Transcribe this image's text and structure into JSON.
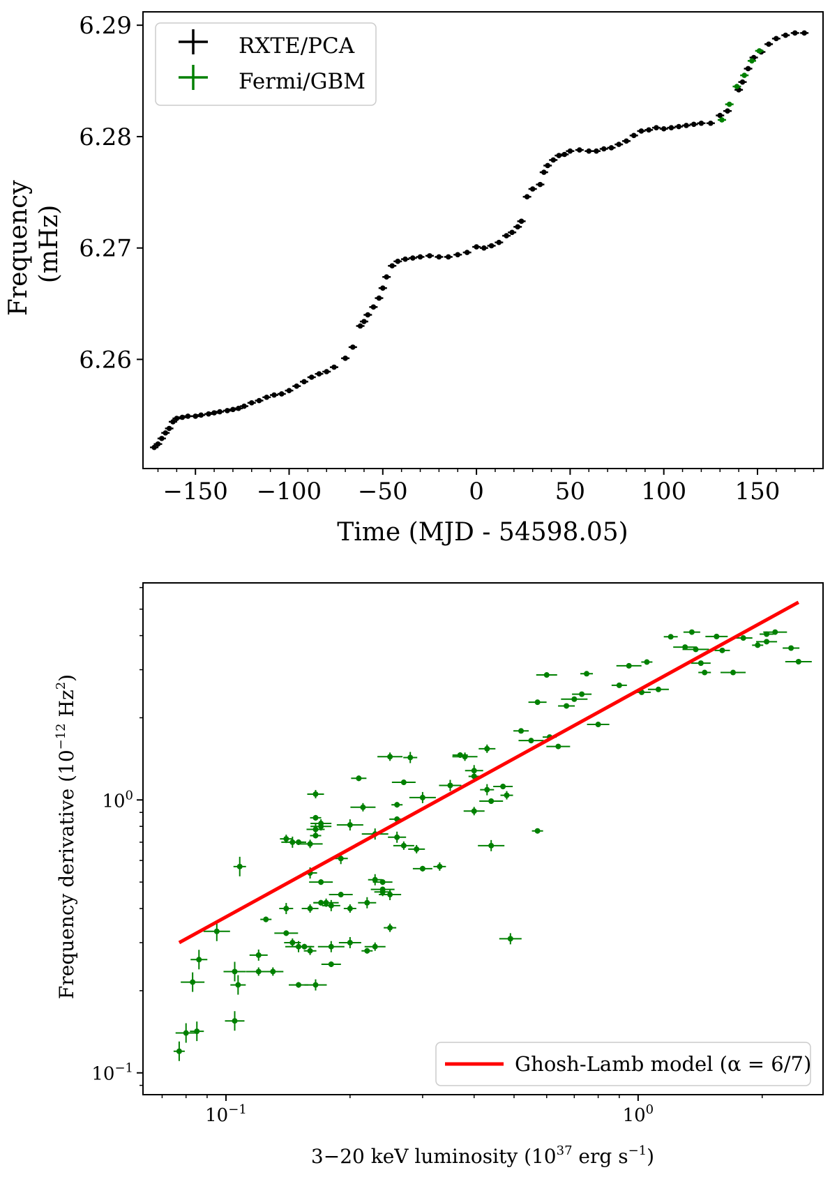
{
  "chart_data": [
    {
      "type": "scatter",
      "title": "",
      "xlabel": "Time (MJD - 54598.05)",
      "ylabel_lines": [
        "Frequency",
        "(mHz)"
      ],
      "xlim": [
        -178,
        185
      ],
      "ylim": [
        6.2502,
        6.2912
      ],
      "xticks": [
        -150,
        -100,
        -50,
        0,
        50,
        100,
        150
      ],
      "xtick_labels": [
        "−150",
        "−100",
        "−50",
        "0",
        "50",
        "100",
        "150"
      ],
      "yticks": [
        6.26,
        6.27,
        6.28,
        6.29
      ],
      "ytick_labels": [
        "6.26",
        "6.27",
        "6.28",
        "6.29"
      ],
      "legend": {
        "position": "upper-left",
        "entries": [
          {
            "label": "RXTE/PCA",
            "color": "#000000"
          },
          {
            "label": "Fermi/GBM",
            "color": "#008000"
          }
        ]
      },
      "series": [
        {
          "name": "RXTE/PCA",
          "color": "#000000",
          "points": [
            [
              -172,
              6.2521
            ],
            [
              -170,
              6.2524
            ],
            [
              -168,
              6.2529
            ],
            [
              -166,
              6.2534
            ],
            [
              -164,
              6.2538
            ],
            [
              -162,
              6.2544
            ],
            [
              -160,
              6.2547
            ],
            [
              -157,
              6.2548
            ],
            [
              -154,
              6.2549
            ],
            [
              -150,
              6.2549
            ],
            [
              -147,
              6.255
            ],
            [
              -143,
              6.2551
            ],
            [
              -140,
              6.2552
            ],
            [
              -137,
              6.2553
            ],
            [
              -133,
              6.2554
            ],
            [
              -130,
              6.2555
            ],
            [
              -127,
              6.2556
            ],
            [
              -124,
              6.2558
            ],
            [
              -120,
              6.2561
            ],
            [
              -116,
              6.2563
            ],
            [
              -112,
              6.2566
            ],
            [
              -108,
              6.2568
            ],
            [
              -104,
              6.2569
            ],
            [
              -100,
              6.2572
            ],
            [
              -96,
              6.2576
            ],
            [
              -92,
              6.258
            ],
            [
              -88,
              6.2584
            ],
            [
              -84,
              6.2587
            ],
            [
              -80,
              6.2589
            ],
            [
              -76,
              6.2593
            ],
            [
              -70,
              6.2601
            ],
            [
              -66,
              6.2611
            ],
            [
              -62,
              6.263
            ],
            [
              -60,
              6.2634
            ],
            [
              -58,
              6.264
            ],
            [
              -55,
              6.2647
            ],
            [
              -52,
              6.2655
            ],
            [
              -50,
              6.2664
            ],
            [
              -48,
              6.2674
            ],
            [
              -45,
              6.2684
            ],
            [
              -42,
              6.2688
            ],
            [
              -38,
              6.269
            ],
            [
              -34,
              6.2691
            ],
            [
              -30,
              6.2692
            ],
            [
              -25,
              6.2693
            ],
            [
              -20,
              6.2692
            ],
            [
              -15,
              6.2692
            ],
            [
              -10,
              6.2694
            ],
            [
              -5,
              6.2696
            ],
            [
              0,
              6.2701
            ],
            [
              4,
              6.27
            ],
            [
              8,
              6.2702
            ],
            [
              12,
              6.2705
            ],
            [
              16,
              6.2711
            ],
            [
              19,
              6.2714
            ],
            [
              22,
              6.2719
            ],
            [
              24,
              6.2724
            ],
            [
              27,
              6.2746
            ],
            [
              30,
              6.2753
            ],
            [
              34,
              6.2757
            ],
            [
              36,
              6.2768
            ],
            [
              38,
              6.2774
            ],
            [
              41,
              6.2779
            ],
            [
              44,
              6.2783
            ],
            [
              47,
              6.2784
            ],
            [
              50,
              6.2787
            ],
            [
              55,
              6.2788
            ],
            [
              60,
              6.2787
            ],
            [
              64,
              6.2787
            ],
            [
              68,
              6.2789
            ],
            [
              72,
              6.279
            ],
            [
              76,
              6.2793
            ],
            [
              80,
              6.2796
            ],
            [
              84,
              6.2801
            ],
            [
              88,
              6.2805
            ],
            [
              92,
              6.2806
            ],
            [
              96,
              6.2808
            ],
            [
              100,
              6.2807
            ],
            [
              104,
              6.2808
            ],
            [
              108,
              6.2809
            ],
            [
              112,
              6.281
            ],
            [
              116,
              6.2811
            ],
            [
              120,
              6.2812
            ],
            [
              125,
              6.2812
            ],
            [
              130,
              6.2819
            ],
            [
              134,
              6.2823
            ],
            [
              140,
              6.2842
            ],
            [
              142,
              6.2849
            ],
            [
              145,
              6.2861
            ],
            [
              148,
              6.2871
            ],
            [
              152,
              6.2876
            ],
            [
              156,
              6.2883
            ],
            [
              160,
              6.2888
            ],
            [
              165,
              6.2891
            ],
            [
              170,
              6.2893
            ],
            [
              175,
              6.2893
            ]
          ]
        },
        {
          "name": "Fermi/GBM",
          "color": "#008000",
          "points": [
            [
              131,
              6.2815
            ],
            [
              135,
              6.2829
            ],
            [
              139,
              6.2845
            ],
            [
              143,
              6.2855
            ],
            [
              147,
              6.2868
            ],
            [
              151,
              6.2877
            ]
          ]
        }
      ]
    },
    {
      "type": "scatter",
      "title": "",
      "xlabel": "3−20 keV luminosity (10^37 erg s^−1)",
      "xlabel_parts": {
        "pre": "3−20 keV luminosity (10",
        "exp": "37",
        "mid": " erg s",
        "exp2": "−1",
        "post": ")"
      },
      "ylabel": "Frequency derivative (10^−12 Hz^2)",
      "ylabel_parts": {
        "pre": "Frequency derivative (10",
        "exp": "−12",
        "mid": " Hz",
        "exp2": "2",
        "post": ")"
      },
      "x_scale": "log",
      "y_scale": "log",
      "xlim": [
        0.0629,
        2.81
      ],
      "ylim": [
        0.0832,
        6.24
      ],
      "xticks": [
        0.1,
        1.0
      ],
      "xtick_labels": [
        {
          "base": "10",
          "exp": "−1"
        },
        {
          "base": "10",
          "exp": "0"
        }
      ],
      "yticks": [
        0.1,
        1.0
      ],
      "ytick_labels": [
        {
          "base": "10",
          "exp": "−1"
        },
        {
          "base": "10",
          "exp": "0"
        }
      ],
      "legend": {
        "position": "lower-right",
        "entries": [
          {
            "label": "Ghosh-Lamb model (α = 6/7)",
            "color": "#ff0000"
          }
        ]
      },
      "model_line": {
        "name": "Ghosh-Lamb model (α = 6/7)",
        "color": "#ff0000",
        "x": [
          0.077,
          2.45
        ],
        "y": [
          0.3,
          5.3
        ]
      },
      "series": [
        {
          "name": "data",
          "color": "#008000",
          "points": [
            [
              0.077,
              0.12
            ],
            [
              0.08,
              0.14
            ],
            [
              0.085,
              0.142
            ],
            [
              0.083,
              0.215
            ],
            [
              0.086,
              0.26
            ],
            [
              0.095,
              0.33
            ],
            [
              0.105,
              0.155
            ],
            [
              0.108,
              0.57
            ],
            [
              0.105,
              0.235
            ],
            [
              0.107,
              0.21
            ],
            [
              0.12,
              0.235
            ],
            [
              0.12,
              0.27
            ],
            [
              0.125,
              0.365
            ],
            [
              0.13,
              0.235
            ],
            [
              0.14,
              0.4
            ],
            [
              0.14,
              0.325
            ],
            [
              0.145,
              0.3
            ],
            [
              0.15,
              0.29
            ],
            [
              0.15,
              0.21
            ],
            [
              0.14,
              0.72
            ],
            [
              0.145,
              0.7
            ],
            [
              0.15,
              0.7
            ],
            [
              0.16,
              0.69
            ],
            [
              0.165,
              0.78
            ],
            [
              0.165,
              0.86
            ],
            [
              0.17,
              0.8
            ],
            [
              0.16,
              0.54
            ],
            [
              0.17,
              0.5
            ],
            [
              0.16,
              0.4
            ],
            [
              0.18,
              0.29
            ],
            [
              0.155,
              0.29
            ],
            [
              0.16,
              0.28
            ],
            [
              0.165,
              0.21
            ],
            [
              0.17,
              0.42
            ],
            [
              0.175,
              0.42
            ],
            [
              0.18,
              0.41
            ],
            [
              0.165,
              0.74
            ],
            [
              0.17,
              0.82
            ],
            [
              0.19,
              0.61
            ],
            [
              0.19,
              0.45
            ],
            [
              0.165,
              1.05
            ],
            [
              0.2,
              0.81
            ],
            [
              0.18,
              0.25
            ],
            [
              0.2,
              0.4
            ],
            [
              0.2,
              0.3
            ],
            [
              0.21,
              1.2
            ],
            [
              0.215,
              0.94
            ],
            [
              0.22,
              0.42
            ],
            [
              0.22,
              0.28
            ],
            [
              0.23,
              0.29
            ],
            [
              0.23,
              0.51
            ],
            [
              0.24,
              0.47
            ],
            [
              0.24,
              0.46
            ],
            [
              0.23,
              0.75
            ],
            [
              0.24,
              0.5
            ],
            [
              0.25,
              0.34
            ],
            [
              0.25,
              0.45
            ],
            [
              0.26,
              0.85
            ],
            [
              0.25,
              1.44
            ],
            [
              0.26,
              0.73
            ],
            [
              0.26,
              0.96
            ],
            [
              0.27,
              0.68
            ],
            [
              0.28,
              1.43
            ],
            [
              0.27,
              1.16
            ],
            [
              0.29,
              0.66
            ],
            [
              0.3,
              1.02
            ],
            [
              0.3,
              0.56
            ],
            [
              0.33,
              0.57
            ],
            [
              0.35,
              1.13
            ],
            [
              0.37,
              1.46
            ],
            [
              0.38,
              1.44
            ],
            [
              0.4,
              1.28
            ],
            [
              0.4,
              1.22
            ],
            [
              0.4,
              0.91
            ],
            [
              0.43,
              1.09
            ],
            [
              0.44,
              0.99
            ],
            [
              0.43,
              1.54
            ],
            [
              0.44,
              0.68
            ],
            [
              0.47,
              1.12
            ],
            [
              0.48,
              1.04
            ],
            [
              0.49,
              0.31
            ],
            [
              0.52,
              1.79
            ],
            [
              0.55,
              1.65
            ],
            [
              0.57,
              2.28
            ],
            [
              0.57,
              0.77
            ],
            [
              0.6,
              2.87
            ],
            [
              0.61,
              1.7
            ],
            [
              0.64,
              1.57
            ],
            [
              0.67,
              2.21
            ],
            [
              0.7,
              2.34
            ],
            [
              0.73,
              2.44
            ],
            [
              0.75,
              2.9
            ],
            [
              0.8,
              1.89
            ],
            [
              0.9,
              2.63
            ],
            [
              0.95,
              3.1
            ],
            [
              1.02,
              2.48
            ],
            [
              1.05,
              3.2
            ],
            [
              1.12,
              2.54
            ],
            [
              1.2,
              3.96
            ],
            [
              1.3,
              3.63
            ],
            [
              1.35,
              4.12
            ],
            [
              1.38,
              3.56
            ],
            [
              1.42,
              3.17
            ],
            [
              1.45,
              2.93
            ],
            [
              1.55,
              3.97
            ],
            [
              1.6,
              3.53
            ],
            [
              1.7,
              2.93
            ],
            [
              1.8,
              3.92
            ],
            [
              1.95,
              3.69
            ],
            [
              2.05,
              3.8
            ],
            [
              2.05,
              4.05
            ],
            [
              2.15,
              4.12
            ],
            [
              2.35,
              3.6
            ],
            [
              2.45,
              3.21
            ]
          ]
        }
      ]
    }
  ]
}
